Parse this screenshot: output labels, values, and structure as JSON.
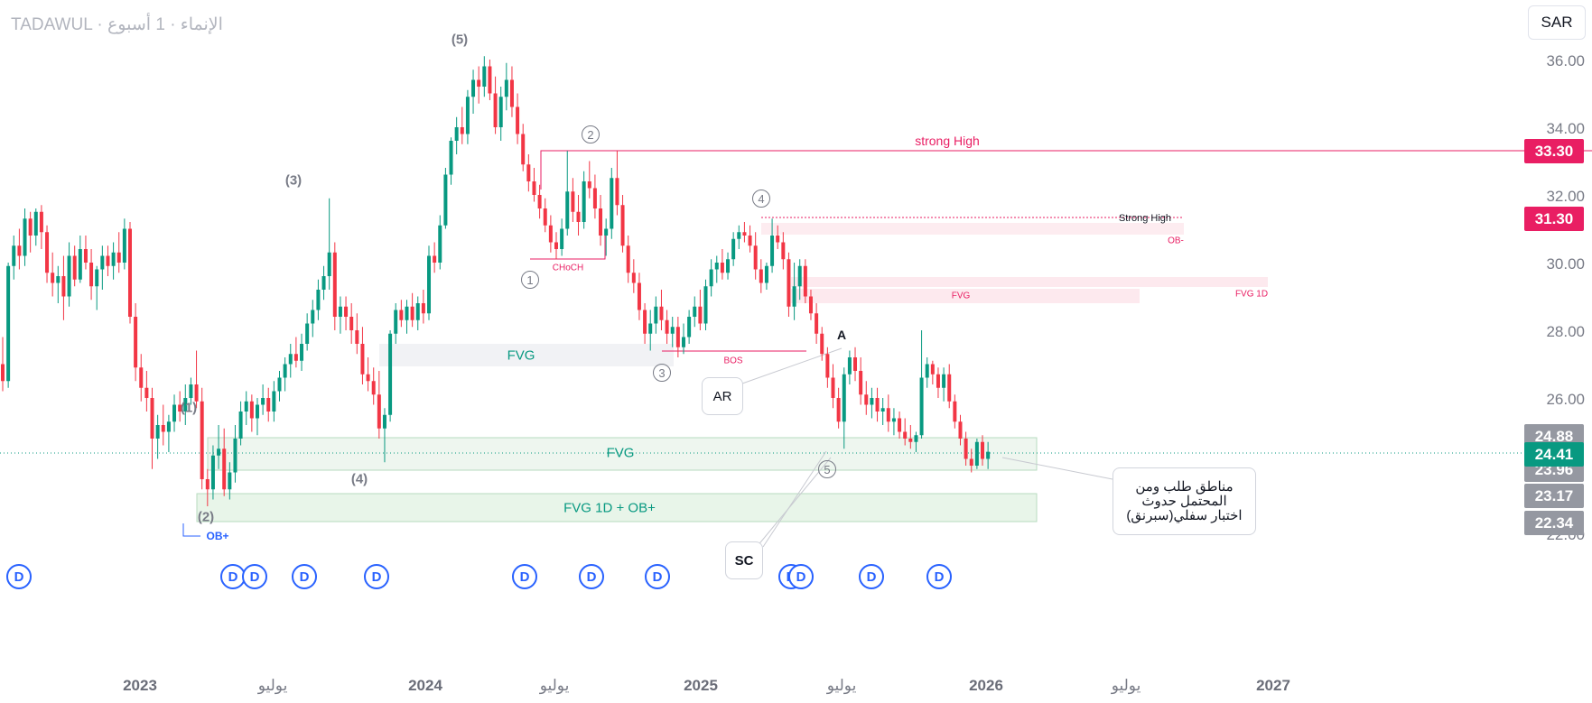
{
  "header": {
    "title": "TADAWUL · الإنماء · 1 أسبوع",
    "currency": "SAR"
  },
  "price_axis": {
    "labels": [
      "36.00",
      "34.00",
      "32.00",
      "30.00",
      "28.00",
      "26.00",
      "22.00"
    ],
    "tags": [
      {
        "value": "33.30",
        "color": "#e91e63"
      },
      {
        "value": "31.30",
        "color": "#e91e63"
      },
      {
        "value": "24.88",
        "color": "#9598a1"
      },
      {
        "value": "24.41",
        "color": "#089981"
      },
      {
        "value": "23.96",
        "color": "#9598a1"
      },
      {
        "value": "23.17",
        "color": "#9598a1"
      },
      {
        "value": "22.34",
        "color": "#9598a1"
      }
    ]
  },
  "time_axis": [
    {
      "label": "2023",
      "kind": "year"
    },
    {
      "label": "يوليو",
      "kind": "mon"
    },
    {
      "label": "2024",
      "kind": "year"
    },
    {
      "label": "يوليو",
      "kind": "mon"
    },
    {
      "label": "2025",
      "kind": "year"
    },
    {
      "label": "يوليو",
      "kind": "mon"
    },
    {
      "label": "2026",
      "kind": "year"
    },
    {
      "label": "يوليو",
      "kind": "mon"
    },
    {
      "label": "2027",
      "kind": "year"
    }
  ],
  "dividend_marker": "D",
  "annotations": {
    "wave_5": "(5)",
    "wave_3": "(3)",
    "wave_1": "(1)",
    "wave_4": "(4)",
    "wave_2": "(2)",
    "circ_2": "2",
    "circ_1": "1",
    "circ_3": "3",
    "circ_4": "4",
    "circ_5": "5",
    "strong_high": "strong High",
    "strong_high_2": "Strong High",
    "ob_minus": "OB-",
    "choch": "CHoCH",
    "bos": "BOS",
    "fvg": "FVG",
    "fvg_small": "FVG",
    "fvg_1d": "FVG 1D",
    "fvg_main": "FVG",
    "fvg_1d_ob": "FVG 1D + OB+",
    "ob_plus": "OB+",
    "a": "A",
    "ar": "AR",
    "sc": "SC",
    "note_lines": [
      "مناطق طلب ومن",
      "المحتمل حدوث",
      "اختبار سفلي(سبرنق)"
    ]
  },
  "colors": {
    "up": "#089981",
    "down": "#f23645",
    "accent": "#e91e63",
    "zone_green": "#e8f5e9",
    "zone_pink": "#fde7ec"
  },
  "chart_data": {
    "type": "candlestick",
    "timeframe": "1W",
    "y_unit": "SAR",
    "ylim": [
      21.5,
      36.6
    ],
    "last_price": 24.41,
    "weeks_from": "2022-09",
    "candles_ohlc": [
      [
        27,
        27.8,
        26.2,
        26.5
      ],
      [
        26.5,
        30.0,
        26.3,
        29.9
      ],
      [
        29.9,
        30.8,
        29.5,
        30.5
      ],
      [
        30.5,
        31.0,
        29.8,
        30.2
      ],
      [
        30.2,
        31.6,
        29.9,
        31.3
      ],
      [
        31.3,
        31.5,
        30.3,
        30.8
      ],
      [
        30.8,
        31.6,
        30.5,
        31.5
      ],
      [
        31.5,
        31.7,
        30.4,
        30.9
      ],
      [
        30.9,
        31.1,
        29.4,
        29.7
      ],
      [
        29.7,
        30.3,
        29.0,
        29.4
      ],
      [
        29.4,
        29.9,
        28.8,
        29.6
      ],
      [
        29.6,
        30.2,
        28.3,
        29.0
      ],
      [
        29.0,
        30.6,
        28.7,
        30.2
      ],
      [
        30.2,
        30.5,
        29.3,
        29.5
      ],
      [
        29.5,
        30.8,
        29.4,
        30.4
      ],
      [
        30.4,
        30.8,
        29.8,
        30.0
      ],
      [
        30.0,
        30.4,
        28.9,
        29.3
      ],
      [
        29.3,
        29.9,
        28.6,
        29.8
      ],
      [
        29.8,
        30.5,
        29.2,
        30.2
      ],
      [
        30.2,
        30.5,
        29.6,
        29.9
      ],
      [
        29.9,
        30.6,
        29.5,
        30.3
      ],
      [
        30.3,
        30.9,
        29.7,
        30.0
      ],
      [
        30.0,
        31.3,
        29.8,
        31.0
      ],
      [
        31.0,
        31.2,
        28.2,
        28.4
      ],
      [
        28.4,
        28.8,
        26.5,
        26.9
      ],
      [
        26.9,
        27.3,
        25.9,
        26.3
      ],
      [
        26.3,
        26.8,
        25.6,
        26.0
      ],
      [
        26.0,
        26.3,
        23.9,
        24.8
      ],
      [
        24.8,
        25.5,
        24.2,
        25.2
      ],
      [
        25.2,
        25.8,
        24.6,
        25.0
      ],
      [
        25.0,
        25.5,
        24.4,
        25.3
      ],
      [
        25.3,
        26.1,
        25.0,
        25.8
      ],
      [
        25.8,
        26.2,
        25.3,
        25.6
      ],
      [
        25.6,
        26.4,
        25.2,
        26.0
      ],
      [
        26.0,
        26.6,
        25.8,
        26.4
      ],
      [
        26.4,
        27.4,
        25.7,
        25.9
      ],
      [
        25.9,
        26.3,
        23.3,
        23.6
      ],
      [
        23.6,
        23.9,
        22.8,
        23.3
      ],
      [
        23.3,
        24.6,
        23.0,
        24.3
      ],
      [
        24.3,
        25.2,
        23.9,
        24.5
      ],
      [
        24.5,
        25.1,
        23.1,
        23.3
      ],
      [
        23.3,
        24.1,
        23.0,
        23.8
      ],
      [
        23.8,
        25.2,
        23.5,
        24.8
      ],
      [
        24.8,
        25.9,
        24.6,
        25.6
      ],
      [
        25.6,
        26.2,
        25.2,
        25.9
      ],
      [
        25.9,
        26.1,
        25.0,
        25.4
      ],
      [
        25.4,
        26.0,
        24.9,
        25.8
      ],
      [
        25.8,
        26.4,
        25.5,
        26.0
      ],
      [
        26.0,
        26.3,
        25.3,
        25.6
      ],
      [
        25.6,
        26.5,
        25.3,
        26.2
      ],
      [
        26.2,
        26.8,
        25.9,
        26.6
      ],
      [
        26.6,
        27.2,
        26.2,
        27.0
      ],
      [
        27.0,
        27.6,
        26.6,
        27.3
      ],
      [
        27.3,
        27.8,
        26.9,
        27.1
      ],
      [
        27.1,
        27.9,
        26.8,
        27.6
      ],
      [
        27.6,
        28.5,
        27.4,
        28.2
      ],
      [
        28.2,
        28.9,
        27.8,
        28.6
      ],
      [
        28.6,
        29.5,
        28.3,
        29.2
      ],
      [
        29.2,
        29.9,
        28.9,
        29.6
      ],
      [
        29.6,
        31.9,
        29.2,
        30.3
      ],
      [
        30.3,
        30.6,
        28.0,
        28.4
      ],
      [
        28.4,
        29.0,
        27.9,
        28.7
      ],
      [
        28.7,
        29.0,
        28.0,
        28.4
      ],
      [
        28.4,
        28.8,
        27.6,
        28.0
      ],
      [
        28.0,
        28.5,
        27.3,
        27.6
      ],
      [
        27.6,
        28.1,
        26.4,
        26.7
      ],
      [
        26.7,
        27.2,
        26.2,
        26.5
      ],
      [
        26.5,
        26.9,
        25.8,
        26.1
      ],
      [
        26.1,
        26.8,
        24.8,
        25.1
      ],
      [
        25.1,
        25.7,
        24.1,
        25.5
      ],
      [
        25.5,
        28.0,
        25.3,
        27.9
      ],
      [
        27.9,
        28.8,
        27.6,
        28.6
      ],
      [
        28.6,
        28.9,
        28.1,
        28.3
      ],
      [
        28.3,
        28.9,
        27.9,
        28.7
      ],
      [
        28.7,
        29.1,
        28.1,
        28.3
      ],
      [
        28.3,
        29.0,
        28.0,
        28.8
      ],
      [
        28.8,
        29.2,
        28.2,
        28.5
      ],
      [
        28.5,
        30.5,
        28.3,
        30.2
      ],
      [
        30.2,
        30.6,
        29.7,
        30.0
      ],
      [
        30.0,
        31.4,
        29.8,
        31.1
      ],
      [
        31.1,
        32.8,
        31.0,
        32.6
      ],
      [
        32.6,
        33.7,
        32.3,
        33.6
      ],
      [
        33.6,
        34.3,
        33.2,
        34.0
      ],
      [
        34.0,
        34.6,
        33.5,
        33.8
      ],
      [
        33.8,
        35.1,
        33.5,
        34.9
      ],
      [
        34.9,
        35.7,
        34.4,
        35.4
      ],
      [
        35.4,
        35.8,
        34.7,
        35.2
      ],
      [
        35.2,
        36.1,
        34.9,
        35.8
      ],
      [
        35.8,
        36.0,
        34.8,
        35.0
      ],
      [
        35.0,
        35.5,
        33.8,
        34.0
      ],
      [
        34.0,
        35.2,
        33.6,
        34.9
      ],
      [
        34.9,
        35.9,
        34.5,
        35.4
      ],
      [
        35.4,
        35.8,
        34.3,
        34.6
      ],
      [
        34.6,
        35.0,
        33.5,
        33.8
      ],
      [
        33.8,
        34.1,
        32.7,
        32.9
      ],
      [
        32.9,
        33.2,
        32.1,
        32.4
      ],
      [
        32.4,
        32.8,
        31.8,
        32.0
      ],
      [
        32.0,
        32.3,
        31.3,
        31.6
      ],
      [
        31.6,
        31.9,
        30.9,
        31.1
      ],
      [
        31.1,
        31.4,
        30.3,
        30.6
      ],
      [
        30.6,
        30.9,
        30.1,
        30.4
      ],
      [
        30.4,
        31.3,
        30.2,
        31.0
      ],
      [
        31.0,
        33.3,
        30.8,
        32.1
      ],
      [
        32.1,
        32.5,
        31.2,
        31.5
      ],
      [
        31.5,
        32.0,
        30.8,
        31.2
      ],
      [
        31.2,
        32.7,
        31.0,
        32.4
      ],
      [
        32.4,
        33.0,
        31.9,
        32.2
      ],
      [
        32.2,
        32.6,
        31.3,
        31.6
      ],
      [
        31.6,
        32.0,
        30.5,
        30.8
      ],
      [
        30.8,
        31.3,
        30.2,
        31.0
      ],
      [
        31.0,
        32.8,
        30.7,
        32.5
      ],
      [
        32.5,
        33.3,
        31.4,
        31.7
      ],
      [
        31.7,
        32.0,
        30.3,
        30.5
      ],
      [
        30.5,
        30.8,
        29.4,
        29.7
      ],
      [
        29.7,
        30.1,
        29.1,
        29.4
      ],
      [
        29.4,
        29.7,
        28.3,
        28.6
      ],
      [
        28.6,
        28.8,
        27.6,
        27.9
      ],
      [
        27.9,
        28.6,
        27.4,
        28.2
      ],
      [
        28.2,
        29.0,
        27.9,
        28.7
      ],
      [
        28.7,
        29.2,
        28.0,
        28.3
      ],
      [
        28.3,
        28.6,
        27.6,
        27.9
      ],
      [
        27.9,
        28.4,
        27.5,
        28.1
      ],
      [
        28.1,
        28.4,
        27.2,
        27.5
      ],
      [
        27.5,
        28.2,
        27.3,
        27.8
      ],
      [
        27.8,
        28.6,
        27.6,
        28.4
      ],
      [
        28.4,
        29.0,
        28.1,
        28.7
      ],
      [
        28.7,
        29.2,
        28.0,
        28.2
      ],
      [
        28.2,
        29.5,
        28.0,
        29.3
      ],
      [
        29.3,
        30.1,
        29.0,
        29.8
      ],
      [
        29.8,
        30.2,
        29.4,
        30.0
      ],
      [
        30.0,
        30.4,
        29.5,
        29.7
      ],
      [
        29.7,
        30.3,
        29.5,
        30.1
      ],
      [
        30.1,
        30.9,
        29.9,
        30.7
      ],
      [
        30.7,
        31.1,
        30.4,
        30.9
      ],
      [
        30.9,
        31.2,
        30.6,
        30.8
      ],
      [
        30.8,
        31.1,
        30.3,
        30.5
      ],
      [
        30.5,
        30.9,
        29.5,
        29.8
      ],
      [
        29.8,
        30.1,
        29.1,
        29.4
      ],
      [
        29.4,
        30.0,
        29.2,
        29.9
      ],
      [
        29.9,
        31.3,
        29.7,
        30.8
      ],
      [
        30.8,
        31.1,
        30.4,
        30.6
      ],
      [
        30.6,
        30.9,
        29.8,
        30.1
      ],
      [
        30.1,
        30.3,
        28.4,
        28.7
      ],
      [
        28.7,
        30.0,
        28.3,
        29.3
      ],
      [
        29.3,
        30.1,
        28.9,
        29.9
      ],
      [
        29.9,
        30.1,
        28.8,
        29.0
      ],
      [
        29.0,
        29.2,
        28.3,
        28.5
      ],
      [
        28.5,
        28.8,
        27.6,
        27.9
      ],
      [
        27.9,
        28.1,
        27.1,
        27.3
      ],
      [
        27.3,
        27.5,
        26.3,
        26.6
      ],
      [
        26.6,
        27.0,
        25.7,
        26.0
      ],
      [
        26.0,
        26.3,
        25.1,
        25.3
      ],
      [
        25.3,
        26.9,
        24.5,
        26.7
      ],
      [
        26.7,
        27.4,
        26.4,
        27.2
      ],
      [
        27.2,
        27.5,
        26.5,
        26.8
      ],
      [
        26.8,
        27.2,
        25.8,
        26.1
      ],
      [
        26.1,
        26.5,
        25.5,
        25.8
      ],
      [
        25.8,
        26.3,
        25.4,
        26.0
      ],
      [
        26.0,
        26.3,
        25.3,
        25.6
      ],
      [
        25.6,
        26.0,
        25.2,
        25.7
      ],
      [
        25.7,
        26.1,
        25.0,
        25.3
      ],
      [
        25.3,
        25.7,
        24.9,
        25.4
      ],
      [
        25.4,
        25.6,
        24.8,
        25.0
      ],
      [
        25.0,
        25.4,
        24.6,
        24.8
      ],
      [
        24.8,
        25.2,
        24.5,
        24.7
      ],
      [
        24.7,
        25.0,
        24.4,
        24.9
      ],
      [
        24.9,
        28.0,
        24.8,
        26.6
      ],
      [
        26.6,
        27.2,
        26.3,
        27.0
      ],
      [
        27.0,
        27.1,
        26.4,
        26.7
      ],
      [
        26.7,
        26.9,
        26.0,
        26.3
      ],
      [
        26.3,
        26.9,
        25.9,
        26.7
      ],
      [
        26.7,
        27.0,
        25.7,
        25.9
      ],
      [
        25.9,
        26.1,
        25.1,
        25.3
      ],
      [
        25.3,
        25.5,
        24.6,
        24.8
      ],
      [
        24.8,
        25.0,
        24.0,
        24.2
      ],
      [
        24.2,
        24.5,
        23.8,
        24.0
      ],
      [
        24.0,
        24.8,
        23.9,
        24.7
      ],
      [
        24.7,
        24.9,
        24.0,
        24.2
      ],
      [
        24.2,
        24.7,
        23.9,
        24.41
      ]
    ]
  }
}
